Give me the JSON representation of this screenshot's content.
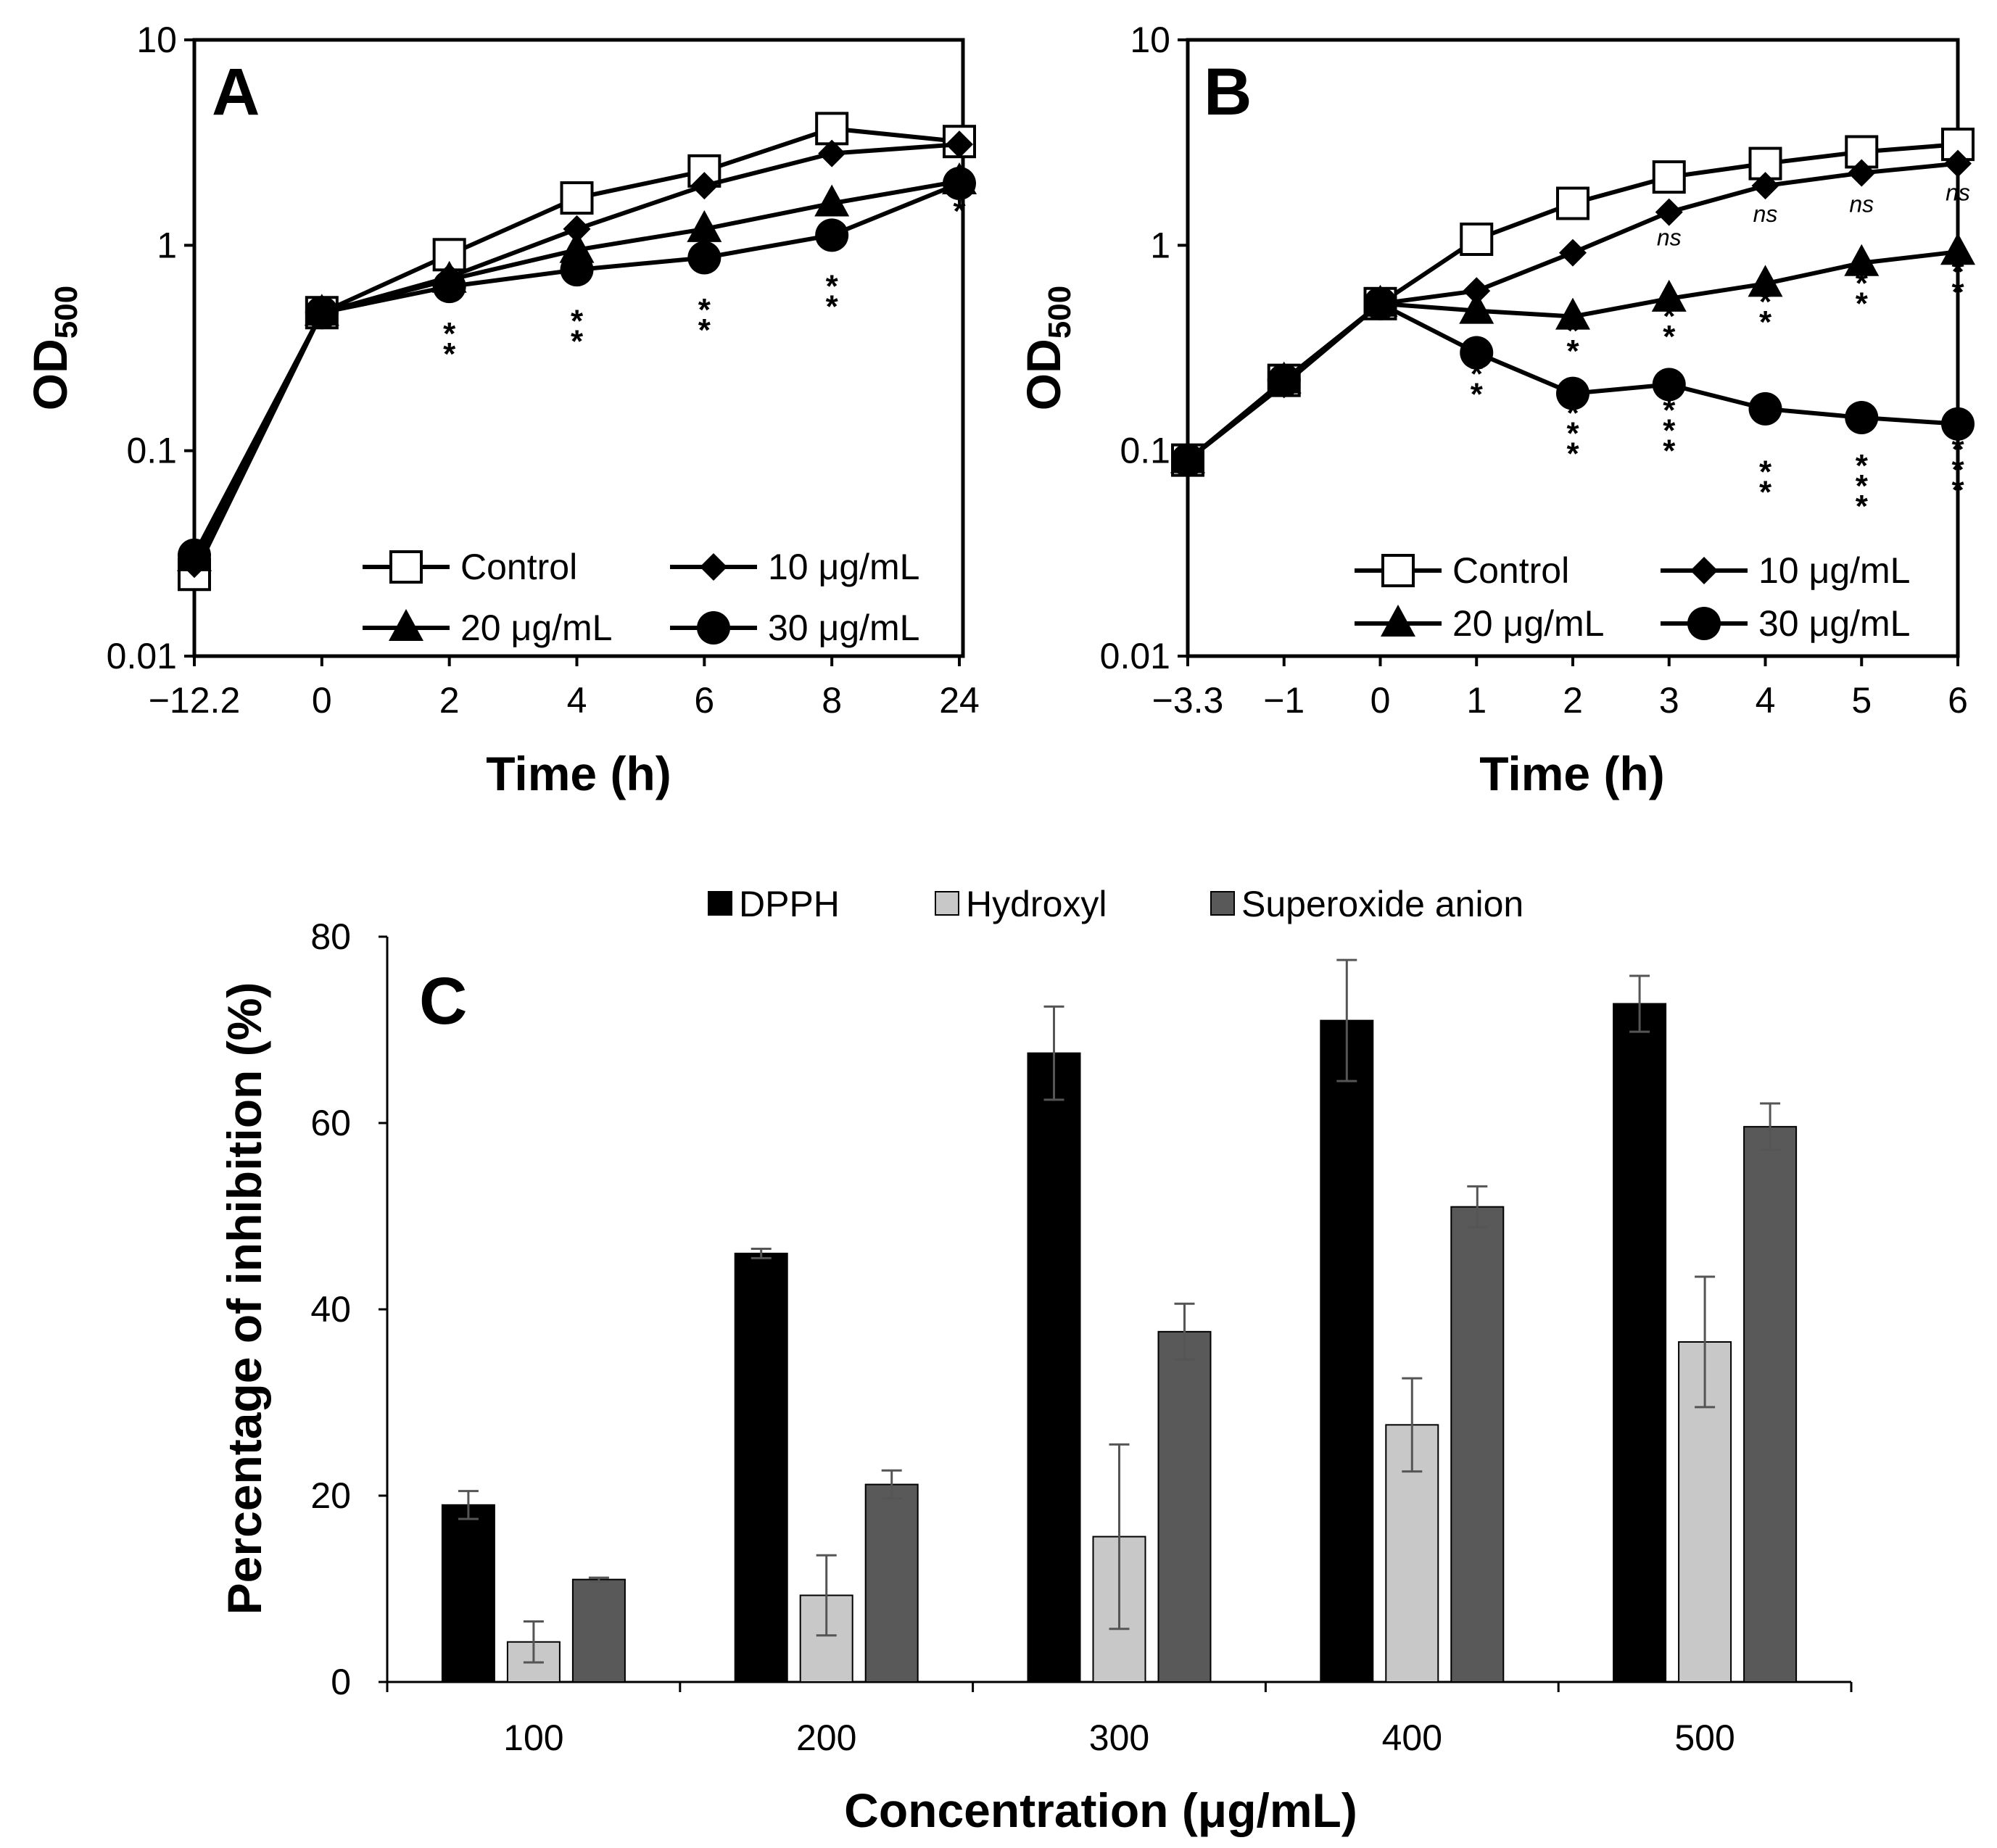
{
  "chart_data": [
    {
      "panel": "A",
      "type": "line",
      "yscale": "log",
      "ylim": [
        0.01,
        10
      ],
      "yticks": [
        "0.01",
        "0.1",
        "1",
        "10"
      ],
      "xlabel": "Time (h)",
      "ylabel_main": "OD",
      "ylabel_sub": "500",
      "categories": [
        "−12.2",
        "0",
        "2",
        "4",
        "6",
        "8",
        "24"
      ],
      "series": [
        {
          "name": "Control",
          "marker": "open-square",
          "values": [
            0.025,
            0.47,
            0.9,
            1.7,
            2.3,
            3.7,
            3.2
          ]
        },
        {
          "name": "10 μg/mL",
          "marker": "diamond",
          "values": [
            0.028,
            0.47,
            0.7,
            1.2,
            1.95,
            2.8,
            3.1
          ]
        },
        {
          "name": "20 μg/mL",
          "marker": "triangle",
          "values": [
            0.03,
            0.47,
            0.68,
            0.95,
            1.2,
            1.6,
            2.05
          ]
        },
        {
          "name": "30 μg/mL",
          "marker": "circle",
          "values": [
            0.031,
            0.47,
            0.63,
            0.76,
            0.87,
            1.12,
            2.0
          ]
        }
      ],
      "annotations": [
        {
          "x": "2",
          "text": "**",
          "layout": "stack",
          "at": 0.33
        },
        {
          "x": "4",
          "text": "**",
          "layout": "stack",
          "at": 0.38
        },
        {
          "x": "6",
          "text": "**",
          "layout": "stack",
          "at": 0.43
        },
        {
          "x": "8",
          "text": "**",
          "layout": "stack",
          "at": 0.56
        },
        {
          "x": "24",
          "text": "*",
          "layout": "stack",
          "at": 1.3
        }
      ]
    },
    {
      "panel": "B",
      "type": "line",
      "yscale": "log",
      "ylim": [
        0.01,
        10
      ],
      "yticks": [
        "0.01",
        "0.1",
        "1",
        "10"
      ],
      "xlabel": "Time (h)",
      "ylabel_main": "OD",
      "ylabel_sub": "500",
      "categories": [
        "−3.3",
        "−1",
        "0",
        "1",
        "2",
        "3",
        "4",
        "5",
        "6"
      ],
      "series": [
        {
          "name": "Control",
          "marker": "open-square",
          "values": [
            0.09,
            0.22,
            0.52,
            1.07,
            1.6,
            2.15,
            2.5,
            2.85,
            3.1
          ]
        },
        {
          "name": "10 μg/mL",
          "marker": "diamond",
          "values": [
            0.09,
            0.21,
            0.52,
            0.6,
            0.92,
            1.45,
            1.95,
            2.25,
            2.5
          ]
        },
        {
          "name": "20 μg/mL",
          "marker": "triangle",
          "values": [
            0.09,
            0.22,
            0.52,
            0.48,
            0.45,
            0.55,
            0.65,
            0.82,
            0.93
          ]
        },
        {
          "name": "30 μg/mL",
          "marker": "circle",
          "values": [
            0.09,
            0.22,
            0.52,
            0.3,
            0.19,
            0.21,
            0.16,
            0.145,
            0.135
          ]
        }
      ],
      "annotations": [
        {
          "x": "3",
          "text": "ns",
          "layout": "ns",
          "at": 1.0
        },
        {
          "x": "4",
          "text": "ns",
          "layout": "ns",
          "at": 1.3
        },
        {
          "x": "5",
          "text": "ns",
          "layout": "ns",
          "at": 1.45
        },
        {
          "x": "6",
          "text": "ns",
          "layout": "ns",
          "at": 1.65
        },
        {
          "x": "1",
          "text": "**",
          "layout": "stack",
          "at": 0.21
        },
        {
          "x": "2",
          "text": "**",
          "layout": "stack",
          "at": 0.34
        },
        {
          "x": "2",
          "text": "***",
          "layout": "stack",
          "at": 0.135
        },
        {
          "x": "3",
          "text": "**",
          "layout": "stack",
          "at": 0.4
        },
        {
          "x": "3",
          "text": "***",
          "layout": "stack",
          "at": 0.14
        },
        {
          "x": "4",
          "text": "**",
          "layout": "stack",
          "at": 0.47
        },
        {
          "x": "4",
          "text": "**",
          "layout": "stack",
          "at": 0.07
        },
        {
          "x": "5",
          "text": "**",
          "layout": "stack",
          "at": 0.58
        },
        {
          "x": "5",
          "text": "***",
          "layout": "stack",
          "at": 0.075
        },
        {
          "x": "6",
          "text": "**",
          "layout": "stack",
          "at": 0.66
        },
        {
          "x": "6",
          "text": "***",
          "layout": "stack",
          "at": 0.09
        }
      ]
    },
    {
      "panel": "C",
      "type": "bar",
      "ylim": [
        0,
        80
      ],
      "yticks": [
        "0",
        "20",
        "40",
        "60",
        "80"
      ],
      "xlabel": "Concentration (μg/mL)",
      "ylabel": "Percentage of inhibition (%)",
      "categories": [
        "100",
        "200",
        "300",
        "400",
        "500"
      ],
      "series": [
        {
          "name": "DPPH",
          "color": "#000000",
          "values": [
            19,
            46,
            67.5,
            71,
            72.8
          ],
          "errors": [
            1.5,
            0.5,
            5,
            6.5,
            3
          ]
        },
        {
          "name": "Hydroxyl",
          "color": "#c8c8c8",
          "values": [
            4.3,
            9.3,
            15.6,
            27.6,
            36.5
          ],
          "errors": [
            2.2,
            4.3,
            9.9,
            5,
            7
          ]
        },
        {
          "name": "Superoxide anion",
          "color": "#595959",
          "values": [
            11,
            21.2,
            37.6,
            51,
            59.6
          ],
          "errors": [
            0.2,
            1.5,
            3,
            2.2,
            2.5
          ]
        }
      ]
    }
  ]
}
